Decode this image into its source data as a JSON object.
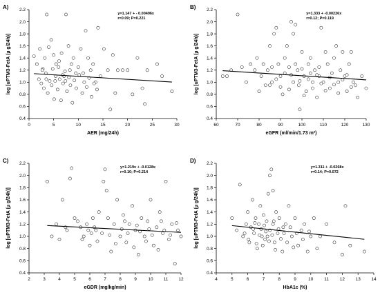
{
  "chart_data": [
    {
      "type": "scatter",
      "panel": "A)",
      "xlabel": "AER (mg/24h)",
      "ylabel": "log [uPTM3-FetA (µ g/24h)]",
      "xlim": [
        0,
        30
      ],
      "ylim": [
        0.4,
        2.2
      ],
      "xticks": [
        0,
        5,
        10,
        15,
        20,
        25,
        30
      ],
      "xtick_labels": [
        "0",
        "5",
        "10",
        "15",
        "20",
        "25",
        "30"
      ],
      "yticks": [
        0.4,
        0.6,
        0.8,
        1.0,
        1.2,
        1.4,
        1.6,
        1.8,
        2.0,
        2.2
      ],
      "ytick_labels": [
        "0.4",
        "0.6",
        "0.8",
        "1.0",
        "1.2",
        "1.4",
        "1.6",
        "1.8",
        "2.0",
        "2.2"
      ],
      "annotation_line1": "y=1.147 + - 0.00496x",
      "annotation_line2": "r=0.09; P=0.221",
      "regression": {
        "intercept": 1.147,
        "slope": -0.00496
      },
      "points": [
        [
          1,
          1.43
        ],
        [
          1.6,
          1.3
        ],
        [
          2.2,
          1.55
        ],
        [
          2.8,
          1.22
        ],
        [
          3.2,
          1.4
        ],
        [
          3.6,
          2.12
        ],
        [
          4,
          1.58
        ],
        [
          4.5,
          1.7
        ],
        [
          5,
          1.45
        ],
        [
          5.5,
          1.3
        ],
        [
          6,
          1.25
        ],
        [
          6.6,
          1.48
        ],
        [
          7.1,
          1.1
        ],
        [
          7.5,
          2.12
        ],
        [
          8,
          1.6
        ],
        [
          8.6,
          1.3
        ],
        [
          9,
          1.4
        ],
        [
          9.5,
          1.15
        ],
        [
          10,
          1.25
        ],
        [
          10.5,
          1.55
        ],
        [
          11,
          1.15
        ],
        [
          11.5,
          1.85
        ],
        [
          12,
          1.4
        ],
        [
          12.5,
          1.2
        ],
        [
          13,
          1.3
        ],
        [
          13.5,
          1.0
        ],
        [
          14,
          1.9
        ],
        [
          14.5,
          1.1
        ],
        [
          15.2,
          1.55
        ],
        [
          16,
          1.2
        ],
        [
          16.5,
          0.55
        ],
        [
          17,
          1.45
        ],
        [
          17.5,
          0.82
        ],
        [
          18,
          1.2
        ],
        [
          19,
          1.2
        ],
        [
          20,
          1.2
        ],
        [
          21,
          0.8
        ],
        [
          22,
          1.4
        ],
        [
          23,
          0.9
        ],
        [
          23.5,
          0.64
        ],
        [
          24,
          1.2
        ],
        [
          26,
          1.3
        ],
        [
          27,
          1.1
        ],
        [
          29,
          0.85
        ],
        [
          2,
          1.05
        ],
        [
          2.5,
          0.98
        ],
        [
          3,
          0.9
        ],
        [
          3.4,
          1.15
        ],
        [
          3.8,
          0.82
        ],
        [
          4.2,
          1.02
        ],
        [
          4.6,
          0.95
        ],
        [
          5.1,
          0.72
        ],
        [
          5.4,
          1.1
        ],
        [
          5.8,
          0.88
        ],
        [
          6.2,
          1.05
        ],
        [
          6.5,
          0.7
        ],
        [
          6.9,
          0.98
        ],
        [
          7.3,
          1.18
        ],
        [
          7.7,
          0.85
        ],
        [
          8.1,
          1.08
        ],
        [
          8.4,
          0.95
        ],
        [
          8.8,
          0.66
        ],
        [
          9.2,
          1.03
        ],
        [
          9.6,
          0.9
        ],
        [
          10.2,
          1.12
        ],
        [
          10.8,
          0.82
        ],
        [
          11.2,
          1.0
        ],
        [
          11.7,
          0.92
        ],
        [
          12.2,
          1.07
        ],
        [
          12.7,
          0.76
        ],
        [
          13.2,
          0.98
        ],
        [
          13.8,
          0.88
        ],
        [
          4.8,
          1.22
        ],
        [
          5.3,
          1.02
        ],
        [
          6.1,
          1.35
        ],
        [
          6.8,
          1.12
        ],
        [
          7.4,
          1.02
        ],
        [
          8.3,
          1.2
        ],
        [
          3.5,
          1.05
        ],
        [
          2.7,
          1.2
        ]
      ]
    },
    {
      "type": "scatter",
      "panel": "B)",
      "xlabel": "eGFR (ml/min/1.73 m²)",
      "ylabel": "log [uPTM3-FetA (µ g/24h)]",
      "xlim": [
        60,
        130
      ],
      "ylim": [
        0.4,
        2.2
      ],
      "xticks": [
        60,
        70,
        80,
        90,
        100,
        110,
        120,
        130
      ],
      "xtick_labels": [
        "60",
        "70",
        "80",
        "90",
        "100",
        "110",
        "120",
        "130"
      ],
      "yticks": [
        0.4,
        0.6,
        0.8,
        1.0,
        1.2,
        1.4,
        1.6,
        1.8,
        2.0,
        2.2
      ],
      "ytick_labels": [
        "0.4",
        "0.6",
        "0.8",
        "1.0",
        "1.2",
        "1.4",
        "1.6",
        "1.8",
        "2.0",
        "2.2"
      ],
      "annotation_line1": "y=1.333 + -0.00226x",
      "annotation_line2": "r=0.12; P=0.119",
      "regression": {
        "intercept": 1.333,
        "slope": -0.00226
      },
      "points": [
        [
          63,
          1.1
        ],
        [
          65,
          1.1
        ],
        [
          67,
          1.2
        ],
        [
          70,
          2.12
        ],
        [
          72,
          1.25
        ],
        [
          74,
          1.0
        ],
        [
          76,
          1.3
        ],
        [
          78,
          1.2
        ],
        [
          79,
          1.4
        ],
        [
          80,
          0.85
        ],
        [
          81,
          1.1
        ],
        [
          82,
          1.3
        ],
        [
          83,
          0.95
        ],
        [
          84,
          1.2
        ],
        [
          85,
          1.6
        ],
        [
          86,
          1.0
        ],
        [
          87,
          1.8
        ],
        [
          88,
          1.9
        ],
        [
          89,
          1.3
        ],
        [
          90,
          1.1
        ],
        [
          91,
          0.8
        ],
        [
          92,
          1.4
        ],
        [
          93,
          1.6
        ],
        [
          94,
          1.25
        ],
        [
          95,
          2.0
        ],
        [
          96,
          1.0
        ],
        [
          97,
          1.3
        ],
        [
          98,
          1.2
        ],
        [
          98.5,
          0.95
        ],
        [
          99,
          0.55
        ],
        [
          100,
          1.5
        ],
        [
          101,
          1.1
        ],
        [
          102,
          0.85
        ],
        [
          103,
          1.3
        ],
        [
          104,
          1.4
        ],
        [
          105,
          1.0
        ],
        [
          106,
          1.2
        ],
        [
          107,
          0.75
        ],
        [
          108,
          1.1
        ],
        [
          109,
          1.9
        ],
        [
          110,
          1.0
        ],
        [
          111,
          1.5
        ],
        [
          112,
          1.3
        ],
        [
          113,
          0.9
        ],
        [
          114,
          1.15
        ],
        [
          115,
          1.4
        ],
        [
          116,
          1.6
        ],
        [
          117,
          1.0
        ],
        [
          118,
          1.2
        ],
        [
          119,
          1.5
        ],
        [
          120,
          1.1
        ],
        [
          121,
          0.85
        ],
        [
          122,
          1.3
        ],
        [
          123,
          1.5
        ],
        [
          124,
          1.0
        ],
        [
          125,
          0.95
        ],
        [
          126,
          0.75
        ],
        [
          128,
          1.1
        ],
        [
          130,
          0.9
        ],
        [
          96,
          1.8
        ],
        [
          97,
          1.95
        ],
        [
          85,
          0.95
        ],
        [
          88,
          1.05
        ],
        [
          90,
          0.92
        ],
        [
          92,
          1.15
        ],
        [
          94,
          0.88
        ],
        [
          99,
          1.02
        ],
        [
          101,
          0.78
        ],
        [
          103,
          1.05
        ],
        [
          105,
          0.9
        ],
        [
          107,
          1.12
        ],
        [
          109,
          0.98
        ],
        [
          111,
          0.86
        ],
        [
          113,
          1.08
        ],
        [
          115,
          0.96
        ],
        [
          117,
          0.82
        ],
        [
          119,
          1.04
        ],
        [
          121,
          1.12
        ],
        [
          123,
          0.92
        ],
        [
          86,
          1.25
        ],
        [
          95,
          1.12
        ],
        [
          100,
          1.22
        ],
        [
          104,
          1.15
        ],
        [
          108,
          1.25
        ]
      ]
    },
    {
      "type": "scatter",
      "panel": "C)",
      "xlabel": "eGDR (mg/kg/min)",
      "ylabel": "log [uPTM3-FetA (µ g/24h)]",
      "xlim": [
        2,
        12
      ],
      "ylim": [
        0.4,
        2.2
      ],
      "xticks": [
        2,
        3,
        4,
        5,
        6,
        7,
        8,
        9,
        10,
        11,
        12
      ],
      "xtick_labels": [
        "2",
        "3",
        "4",
        "5",
        "6",
        "7",
        "8",
        "9",
        "10",
        "11",
        "12"
      ],
      "yticks": [
        0.4,
        0.6,
        0.8,
        1.0,
        1.2,
        1.4,
        1.6,
        1.8,
        2.0,
        2.2
      ],
      "ytick_labels": [
        "0.4",
        "0.6",
        "0.8",
        "1.0",
        "1.2",
        "1.4",
        "1.6",
        "1.8",
        "2.0",
        "2.2"
      ],
      "annotation_line1": "y=1.219x + -0.0128x",
      "annotation_line2": "r=0.10; P=0.214",
      "regression": {
        "intercept": 1.219,
        "slope": -0.0128
      },
      "points": [
        [
          3.2,
          1.9
        ],
        [
          3.5,
          1.0
        ],
        [
          3.8,
          1.2
        ],
        [
          4,
          0.95
        ],
        [
          4.2,
          1.6
        ],
        [
          4.5,
          1.1
        ],
        [
          4.7,
          1.95
        ],
        [
          4.8,
          2.12
        ],
        [
          5,
          1.3
        ],
        [
          5.2,
          1.25
        ],
        [
          5.4,
          1.15
        ],
        [
          5.6,
          1.0
        ],
        [
          5.8,
          1.2
        ],
        [
          6,
          0.85
        ],
        [
          6.2,
          1.3
        ],
        [
          6.4,
          1.1
        ],
        [
          6.6,
          1.4
        ],
        [
          6.8,
          1.05
        ],
        [
          7,
          2.1
        ],
        [
          7.2,
          1.3
        ],
        [
          7.4,
          0.75
        ],
        [
          7.6,
          1.2
        ],
        [
          7.8,
          1.6
        ],
        [
          8,
          1.0
        ],
        [
          8.2,
          1.35
        ],
        [
          8.4,
          0.9
        ],
        [
          8.6,
          1.2
        ],
        [
          8.8,
          1.5
        ],
        [
          9,
          1.1
        ],
        [
          9.2,
          0.7
        ],
        [
          9.4,
          1.3
        ],
        [
          9.6,
          1.0
        ],
        [
          9.8,
          1.25
        ],
        [
          10,
          1.6
        ],
        [
          10.2,
          0.85
        ],
        [
          10.4,
          1.15
        ],
        [
          10.6,
          1.4
        ],
        [
          10.8,
          1.05
        ],
        [
          11,
          1.9
        ],
        [
          11.2,
          0.95
        ],
        [
          11.4,
          1.2
        ],
        [
          11.6,
          0.55
        ],
        [
          11.8,
          1.1
        ],
        [
          12,
          1.0
        ],
        [
          6.9,
          1.9
        ],
        [
          7.1,
          1.75
        ],
        [
          5.5,
          0.95
        ],
        [
          6.1,
          1.05
        ],
        [
          6.5,
          0.92
        ],
        [
          7.3,
          1.02
        ],
        [
          7.7,
          0.88
        ],
        [
          8.1,
          1.12
        ],
        [
          8.5,
          1.05
        ],
        [
          8.9,
          0.82
        ],
        [
          9.3,
          1.08
        ],
        [
          9.7,
          0.92
        ],
        [
          10.1,
          1.02
        ],
        [
          10.5,
          0.78
        ],
        [
          10.9,
          1.1
        ],
        [
          11.3,
          1.02
        ],
        [
          11.7,
          1.22
        ],
        [
          8.3,
          1.25
        ],
        [
          9.1,
          1.18
        ],
        [
          9.9,
          1.12
        ],
        [
          10.7,
          1.25
        ],
        [
          6.3,
          1.15
        ],
        [
          5.9,
          1.1
        ],
        [
          4.4,
          1.15
        ]
      ]
    },
    {
      "type": "scatter",
      "panel": "D)",
      "xlabel": "HbA1c (%)",
      "ylabel": "log [uPTM3-FetA (µ g/24h)]",
      "xlim": [
        4,
        14
      ],
      "ylim": [
        0.4,
        2.2
      ],
      "xticks": [
        4,
        5,
        6,
        7,
        8,
        9,
        10,
        11,
        12,
        13,
        14
      ],
      "xtick_labels": [
        "4",
        "5",
        "6",
        "7",
        "8",
        "9",
        "10",
        "11",
        "12",
        "13",
        "14"
      ],
      "yticks": [
        0.4,
        0.6,
        0.8,
        1.0,
        1.2,
        1.4,
        1.6,
        1.8,
        2.0,
        2.2
      ],
      "ytick_labels": [
        "0.4",
        "0.6",
        "0.8",
        "1.0",
        "1.2",
        "1.4",
        "1.6",
        "1.8",
        "2.0",
        "2.2"
      ],
      "annotation_line1": "y=1.311 + -0.0268x",
      "annotation_line2": "r=0.14; P=0.072",
      "regression": {
        "intercept": 1.311,
        "slope": -0.0268
      },
      "points": [
        [
          5,
          1.3
        ],
        [
          5.3,
          1.1
        ],
        [
          5.5,
          1.85
        ],
        [
          5.7,
          1.0
        ],
        [
          5.9,
          1.2
        ],
        [
          6,
          1.4
        ],
        [
          6.1,
          0.9
        ],
        [
          6.2,
          1.15
        ],
        [
          6.3,
          1.6
        ],
        [
          6.4,
          1.05
        ],
        [
          6.5,
          1.3
        ],
        [
          6.6,
          0.8
        ],
        [
          6.7,
          1.2
        ],
        [
          6.8,
          1.5
        ],
        [
          6.9,
          1.0
        ],
        [
          7,
          1.35
        ],
        [
          7.1,
          0.95
        ],
        [
          7.2,
          1.25
        ],
        [
          7.3,
          1.7
        ],
        [
          7.4,
          1.1
        ],
        [
          7.5,
          2.1
        ],
        [
          7.6,
          1.2
        ],
        [
          7.7,
          0.9
        ],
        [
          7.8,
          1.4
        ],
        [
          7.9,
          1.05
        ],
        [
          8,
          1.3
        ],
        [
          8.2,
          0.75
        ],
        [
          8.4,
          1.2
        ],
        [
          8.6,
          1.5
        ],
        [
          8.8,
          1.0
        ],
        [
          9,
          1.3
        ],
        [
          9.2,
          0.85
        ],
        [
          9.4,
          1.1
        ],
        [
          9.6,
          1.2
        ],
        [
          9.8,
          0.75
        ],
        [
          10,
          1.0
        ],
        [
          10.2,
          1.3
        ],
        [
          10.4,
          0.8
        ],
        [
          10.6,
          1.0
        ],
        [
          11,
          1.2
        ],
        [
          11.5,
          0.9
        ],
        [
          12,
          0.7
        ],
        [
          12.2,
          1.5
        ],
        [
          12.5,
          0.85
        ],
        [
          13.4,
          0.75
        ],
        [
          7.4,
          2.0
        ],
        [
          7.6,
          1.75
        ],
        [
          5.8,
          1.05
        ],
        [
          6.05,
          0.95
        ],
        [
          6.35,
          1.12
        ],
        [
          6.55,
          0.88
        ],
        [
          6.75,
          1.02
        ],
        [
          6.95,
          0.85
        ],
        [
          7.15,
          1.08
        ],
        [
          7.35,
          0.92
        ],
        [
          7.55,
          1.02
        ],
        [
          7.75,
          0.78
        ],
        [
          7.95,
          1.12
        ],
        [
          8.1,
          0.96
        ],
        [
          8.3,
          1.05
        ],
        [
          8.5,
          0.9
        ],
        [
          8.7,
          1.15
        ],
        [
          8.9,
          0.82
        ],
        [
          9.1,
          1.05
        ],
        [
          9.5,
          0.95
        ],
        [
          9.9,
          1.08
        ],
        [
          6.45,
          1.22
        ],
        [
          7.05,
          1.18
        ],
        [
          7.65,
          1.25
        ],
        [
          8.25,
          1.15
        ],
        [
          6.85,
          1.12
        ],
        [
          7.25,
          1.0
        ]
      ]
    }
  ]
}
